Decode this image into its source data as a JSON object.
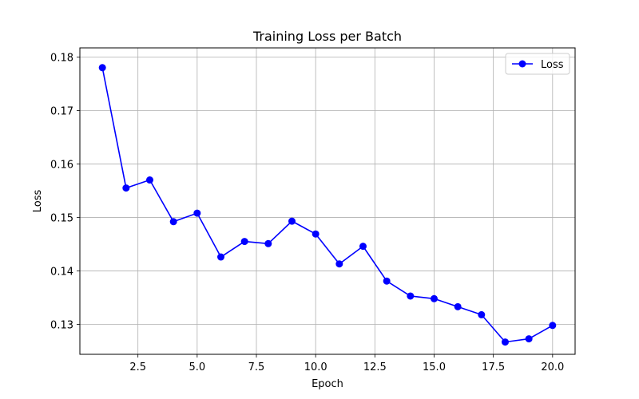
{
  "chart_data": {
    "type": "line",
    "title": "Training Loss per Batch",
    "xlabel": "Epoch",
    "ylabel": "Loss",
    "xlim": [
      0.05,
      20.95
    ],
    "ylim": [
      0.1244,
      0.1817
    ],
    "x_ticks": [
      2.5,
      5.0,
      7.5,
      10.0,
      12.5,
      15.0,
      17.5,
      20.0
    ],
    "x_tick_labels": [
      "2.5",
      "5.0",
      "7.5",
      "10.0",
      "12.5",
      "15.0",
      "17.5",
      "20.0"
    ],
    "y_ticks": [
      0.13,
      0.14,
      0.15,
      0.16,
      0.17,
      0.18
    ],
    "y_tick_labels": [
      "0.13",
      "0.14",
      "0.15",
      "0.16",
      "0.17",
      "0.18"
    ],
    "grid": true,
    "legend_position": "top-right",
    "series": [
      {
        "name": "Loss",
        "color": "#0000ff",
        "marker": "circle",
        "x": [
          1,
          2,
          3,
          4,
          5,
          6,
          7,
          8,
          9,
          10,
          11,
          12,
          13,
          14,
          15,
          16,
          17,
          18,
          19,
          20
        ],
        "values": [
          0.178,
          0.1555,
          0.157,
          0.1492,
          0.1508,
          0.1426,
          0.1455,
          0.1451,
          0.1493,
          0.1469,
          0.1413,
          0.1446,
          0.1381,
          0.1353,
          0.1348,
          0.1333,
          0.1318,
          0.1267,
          0.1273,
          0.1298
        ]
      }
    ]
  }
}
